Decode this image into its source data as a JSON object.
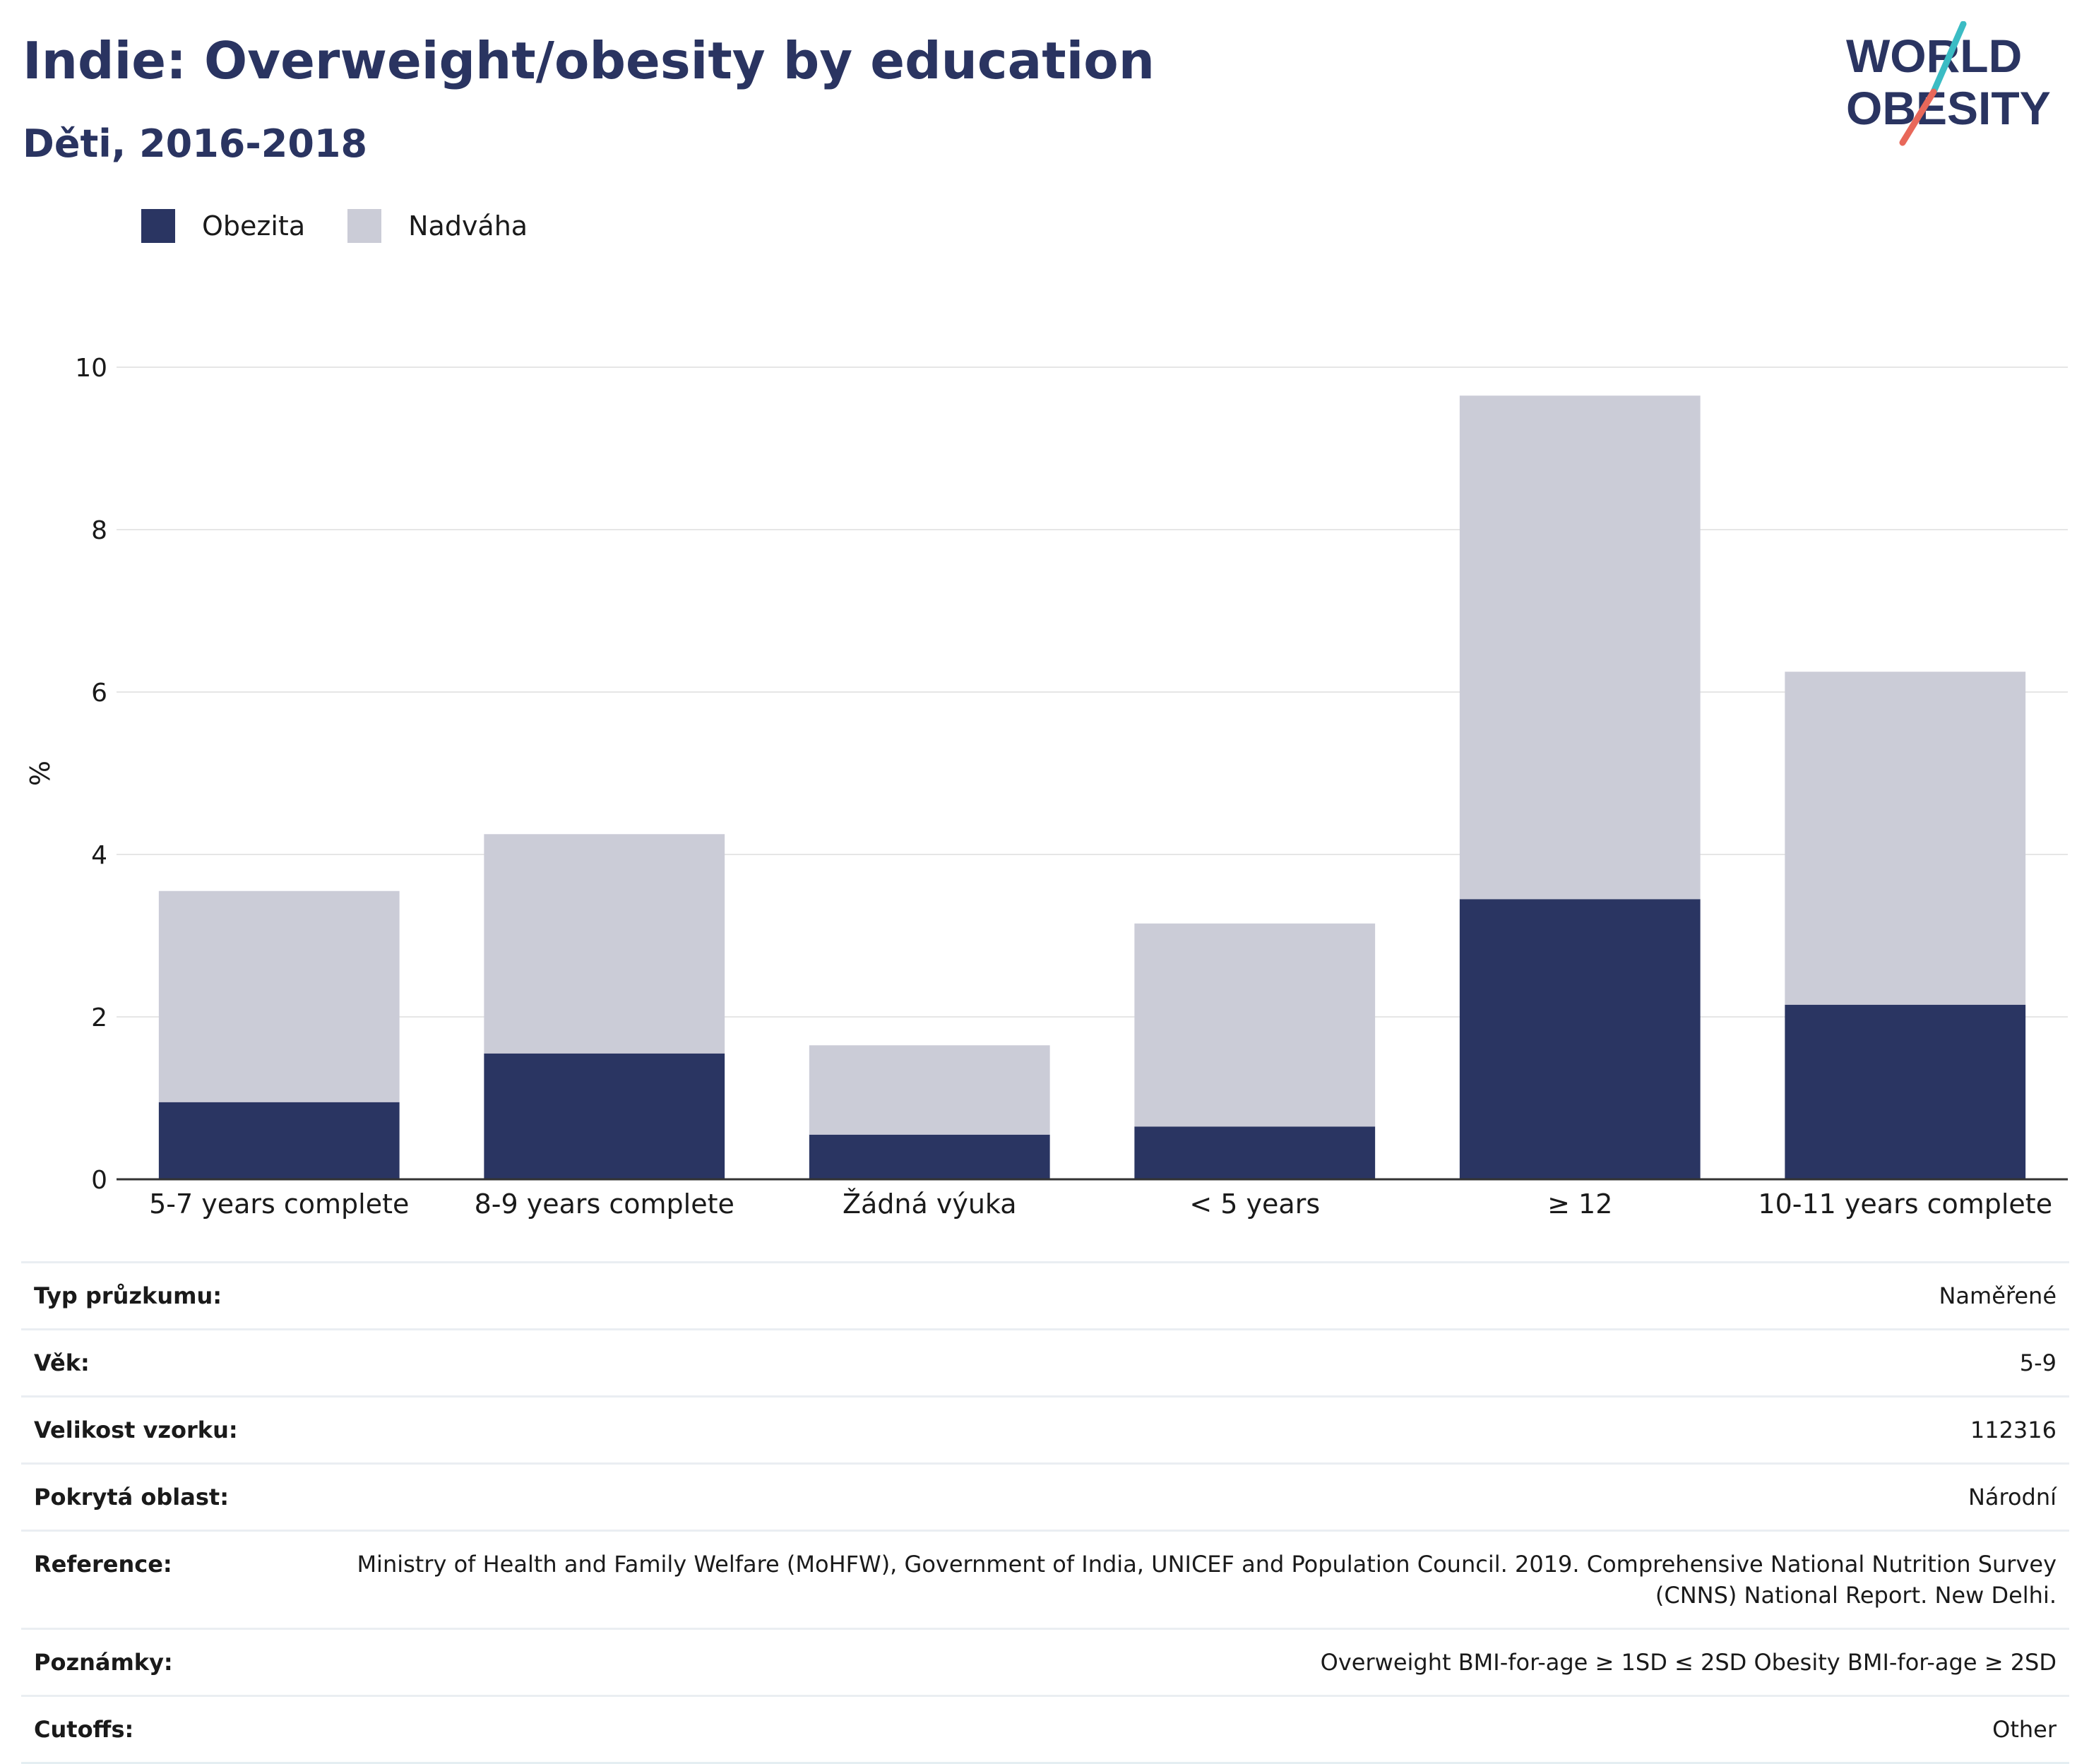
{
  "header": {
    "title": "Indie: Overweight/obesity by education",
    "subtitle": "Děti, 2016-2018"
  },
  "logo": {
    "line1": "WORLD",
    "line2": "OBESITY",
    "accent_teal": "#3bbcc4",
    "accent_red": "#e8685a"
  },
  "colors": {
    "obesity": "#2a3562",
    "overweight": "#cbccd7",
    "grid": "#e6e6e6",
    "axis": "#333333"
  },
  "chart_data": {
    "type": "bar",
    "stacked": true,
    "categories": [
      "5-7 years complete",
      "8-9 years complete",
      "Žádná výuka",
      "< 5 years",
      "≥ 12",
      "10-11 years complete"
    ],
    "series": [
      {
        "name": "Obezita",
        "values": [
          0.95,
          1.55,
          0.55,
          0.65,
          3.45,
          2.15
        ]
      },
      {
        "name": "Nadváha",
        "values": [
          2.6,
          2.7,
          1.1,
          2.5,
          6.2,
          4.1
        ]
      }
    ],
    "ylabel": "%",
    "ylim": [
      0,
      10
    ],
    "yticks": [
      0,
      2,
      4,
      6,
      8,
      10
    ],
    "grid": true,
    "legend_position": "top-left"
  },
  "meta": [
    {
      "key": "Typ průzkumu:",
      "value": "Naměřené"
    },
    {
      "key": "Věk:",
      "value": "5-9"
    },
    {
      "key": "Velikost vzorku:",
      "value": "112316"
    },
    {
      "key": "Pokrytá oblast:",
      "value": "Národní"
    },
    {
      "key": "Reference:",
      "value": "Ministry of Health and Family Welfare (MoHFW), Government of India, UNICEF and Population Council. 2019. Comprehensive National Nutrition Survey (CNNS) National Report. New Delhi."
    },
    {
      "key": "Poznámky:",
      "value": "Overweight BMI-for-age ≥ 1SD ≤ 2SD Obesity BMI-for-age ≥ 2SD"
    },
    {
      "key": "Cutoffs:",
      "value": "Other"
    }
  ]
}
